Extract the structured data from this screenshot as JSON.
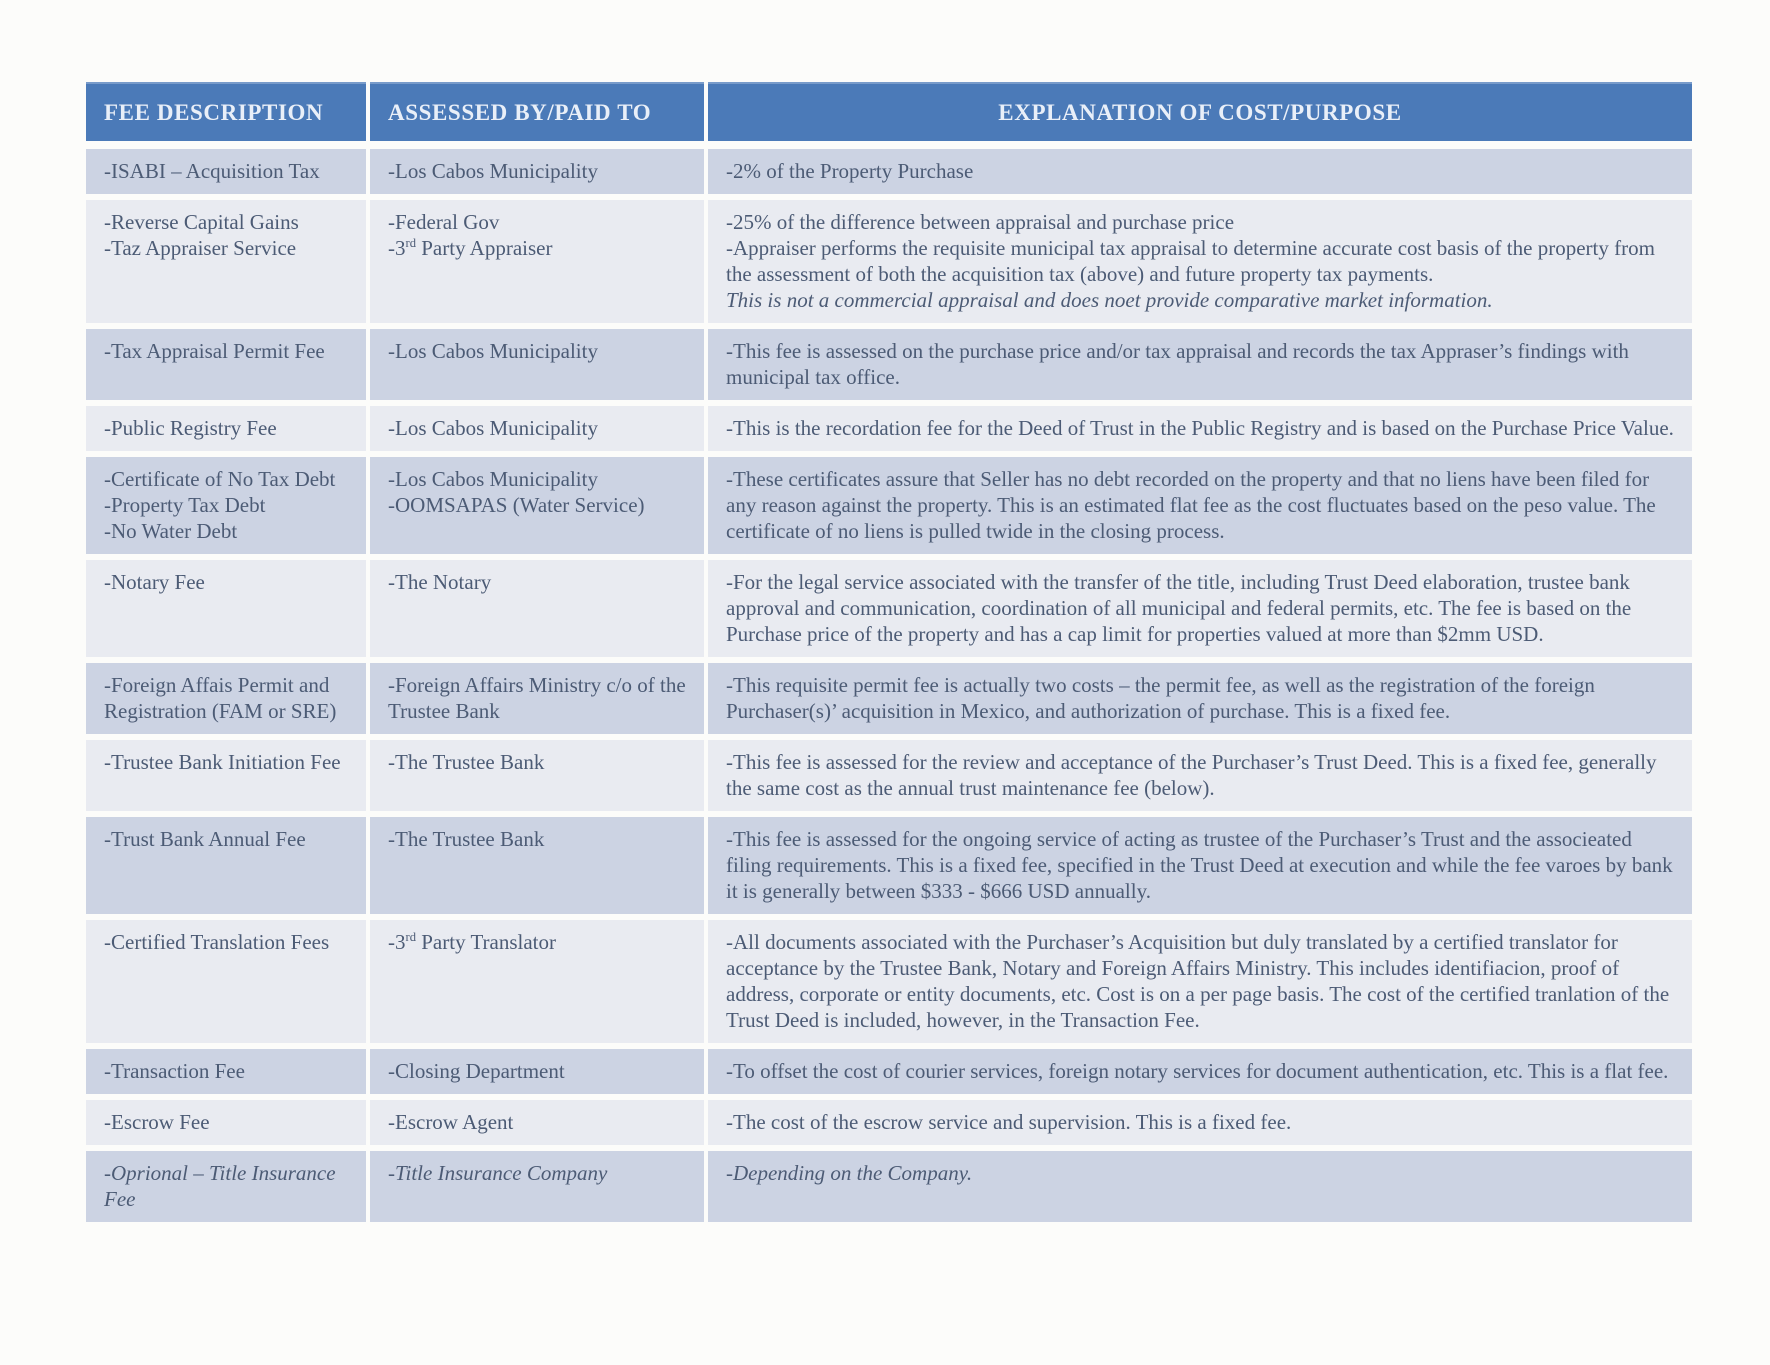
{
  "table": {
    "columns": [
      {
        "label": "FEE DESCRIPTION"
      },
      {
        "label": "ASSESSED BY/PAID TO"
      },
      {
        "label": "EXPLANATION OF COST/PURPOSE"
      }
    ],
    "header_bg_color": "#4b7ab8",
    "row_stripe_dark_color": "#ccd3e3",
    "row_stripe_light_color": "#e9ebf1",
    "text_color": "#4c5b75",
    "rows": [
      {
        "fee": [
          {
            "t": "-ISABI – Acquisition Tax"
          }
        ],
        "assessed": [
          {
            "t": "-Los Cabos Municipality"
          }
        ],
        "explanation": [
          {
            "t": "-2% of the Property Purchase"
          }
        ]
      },
      {
        "fee": [
          {
            "t": "-Reverse Capital Gains"
          },
          {
            "t": "-Taz Appraiser Service"
          }
        ],
        "assessed": [
          {
            "t": "-Federal Gov"
          },
          {
            "t": "-3^{rd} Party Appraiser"
          }
        ],
        "explanation": [
          {
            "t": "-25% of the difference between appraisal and purchase price"
          },
          {
            "t": "-Appraiser performs the requisite municipal tax appraisal to determine accurate cost basis of the property from the assessment of both the acquisition tax (above) and future property tax payments."
          },
          {
            "t": "This is not a commercial appraisal and does noet provide comparative market information.",
            "i": true
          }
        ]
      },
      {
        "fee": [
          {
            "t": "-Tax Appraisal Permit Fee"
          }
        ],
        "assessed": [
          {
            "t": "-Los Cabos Municipality"
          }
        ],
        "explanation": [
          {
            "t": "-This fee is assessed on the purchase price and/or tax appraisal and records the tax Appraser’s findings with municipal tax office."
          }
        ]
      },
      {
        "fee": [
          {
            "t": "-Public Registry Fee"
          }
        ],
        "assessed": [
          {
            "t": "-Los Cabos Municipality"
          }
        ],
        "explanation": [
          {
            "t": "-This is the recordation fee for the Deed of Trust in the Public Registry and is based on the Purchase Price Value."
          }
        ]
      },
      {
        "fee": [
          {
            "t": "-Certificate of No Tax Debt"
          },
          {
            "t": "-Property Tax Debt"
          },
          {
            "t": "-No Water Debt"
          }
        ],
        "assessed": [
          {
            "t": "-Los Cabos Municipality"
          },
          {
            "t": "-OOMSAPAS (Water Service)"
          }
        ],
        "explanation": [
          {
            "t": "-These certificates assure that Seller has no debt recorded on the property and that no liens have been filed for any reason against the property. This is an estimated flat fee as the cost fluctuates based on the peso value. The certificate of no liens is pulled twide in the closing process."
          }
        ]
      },
      {
        "fee": [
          {
            "t": "-Notary Fee"
          }
        ],
        "assessed": [
          {
            "t": "-The Notary"
          }
        ],
        "explanation": [
          {
            "t": "-For the legal service associated with the transfer of the title, including Trust Deed elaboration, trustee bank approval and communication, coordination of all municipal and federal permits, etc. The fee is based on the Purchase price of the property and has a cap limit for properties valued at more than $2mm USD."
          }
        ]
      },
      {
        "fee": [
          {
            "t": "-Foreign Affais Permit and Registration (FAM or SRE)"
          }
        ],
        "assessed": [
          {
            "t": "-Foreign Affairs Ministry c/o of the Trustee Bank"
          }
        ],
        "explanation": [
          {
            "t": "-This requisite permit fee is actually two costs – the permit fee, as well as the registration of the foreign Purchaser(s)’ acquisition in Mexico, and authorization of purchase. This is a fixed fee."
          }
        ]
      },
      {
        "fee": [
          {
            "t": "-Trustee Bank Initiation Fee"
          }
        ],
        "assessed": [
          {
            "t": "-The Trustee Bank"
          }
        ],
        "explanation": [
          {
            "t": "-This fee is assessed for the review and acceptance of the Purchaser’s Trust Deed. This is a fixed fee, generally the same cost as the annual trust maintenance fee (below)."
          }
        ]
      },
      {
        "fee": [
          {
            "t": "-Trust Bank Annual Fee"
          }
        ],
        "assessed": [
          {
            "t": "-The Trustee Bank"
          }
        ],
        "explanation": [
          {
            "t": "-This fee is assessed for the ongoing service of acting as trustee of the Purchaser’s Trust and the associeated filing requirements. This is a fixed fee, specified in the Trust Deed at execution and while the fee varoes by bank it is generally between $333 - $666 USD annually."
          }
        ]
      },
      {
        "fee": [
          {
            "t": "-Certified Translation Fees"
          }
        ],
        "assessed": [
          {
            "t": "-3^{rd} Party Translator"
          }
        ],
        "explanation": [
          {
            "t": "-All documents associated with the Purchaser’s Acquisition but duly translated by a certified translator for acceptance by the Trustee Bank, Notary and Foreign Affairs Ministry. This includes identifiacion, proof of address, corporate or entity documents, etc. Cost is on a per page basis. The cost of the certified tranlation of the Trust Deed is included, however, in the Transaction Fee."
          }
        ]
      },
      {
        "fee": [
          {
            "t": "-Transaction Fee"
          }
        ],
        "assessed": [
          {
            "t": "-Closing Department"
          }
        ],
        "explanation": [
          {
            "t": "-To offset the cost of courier services, foreign notary services for document authentication, etc. This is a flat fee."
          }
        ]
      },
      {
        "fee": [
          {
            "t": "-Escrow Fee"
          }
        ],
        "assessed": [
          {
            "t": "-Escrow Agent"
          }
        ],
        "explanation": [
          {
            "t": "-The cost of the escrow service and supervision. This is a fixed fee."
          }
        ]
      },
      {
        "fee": [
          {
            "t": "-Oprional – Title Insurance Fee",
            "i": true
          }
        ],
        "assessed": [
          {
            "t": "-Title Insurance Company",
            "i": true
          }
        ],
        "explanation": [
          {
            "t": "-Depending on the Company.",
            "i": true
          }
        ]
      }
    ]
  }
}
